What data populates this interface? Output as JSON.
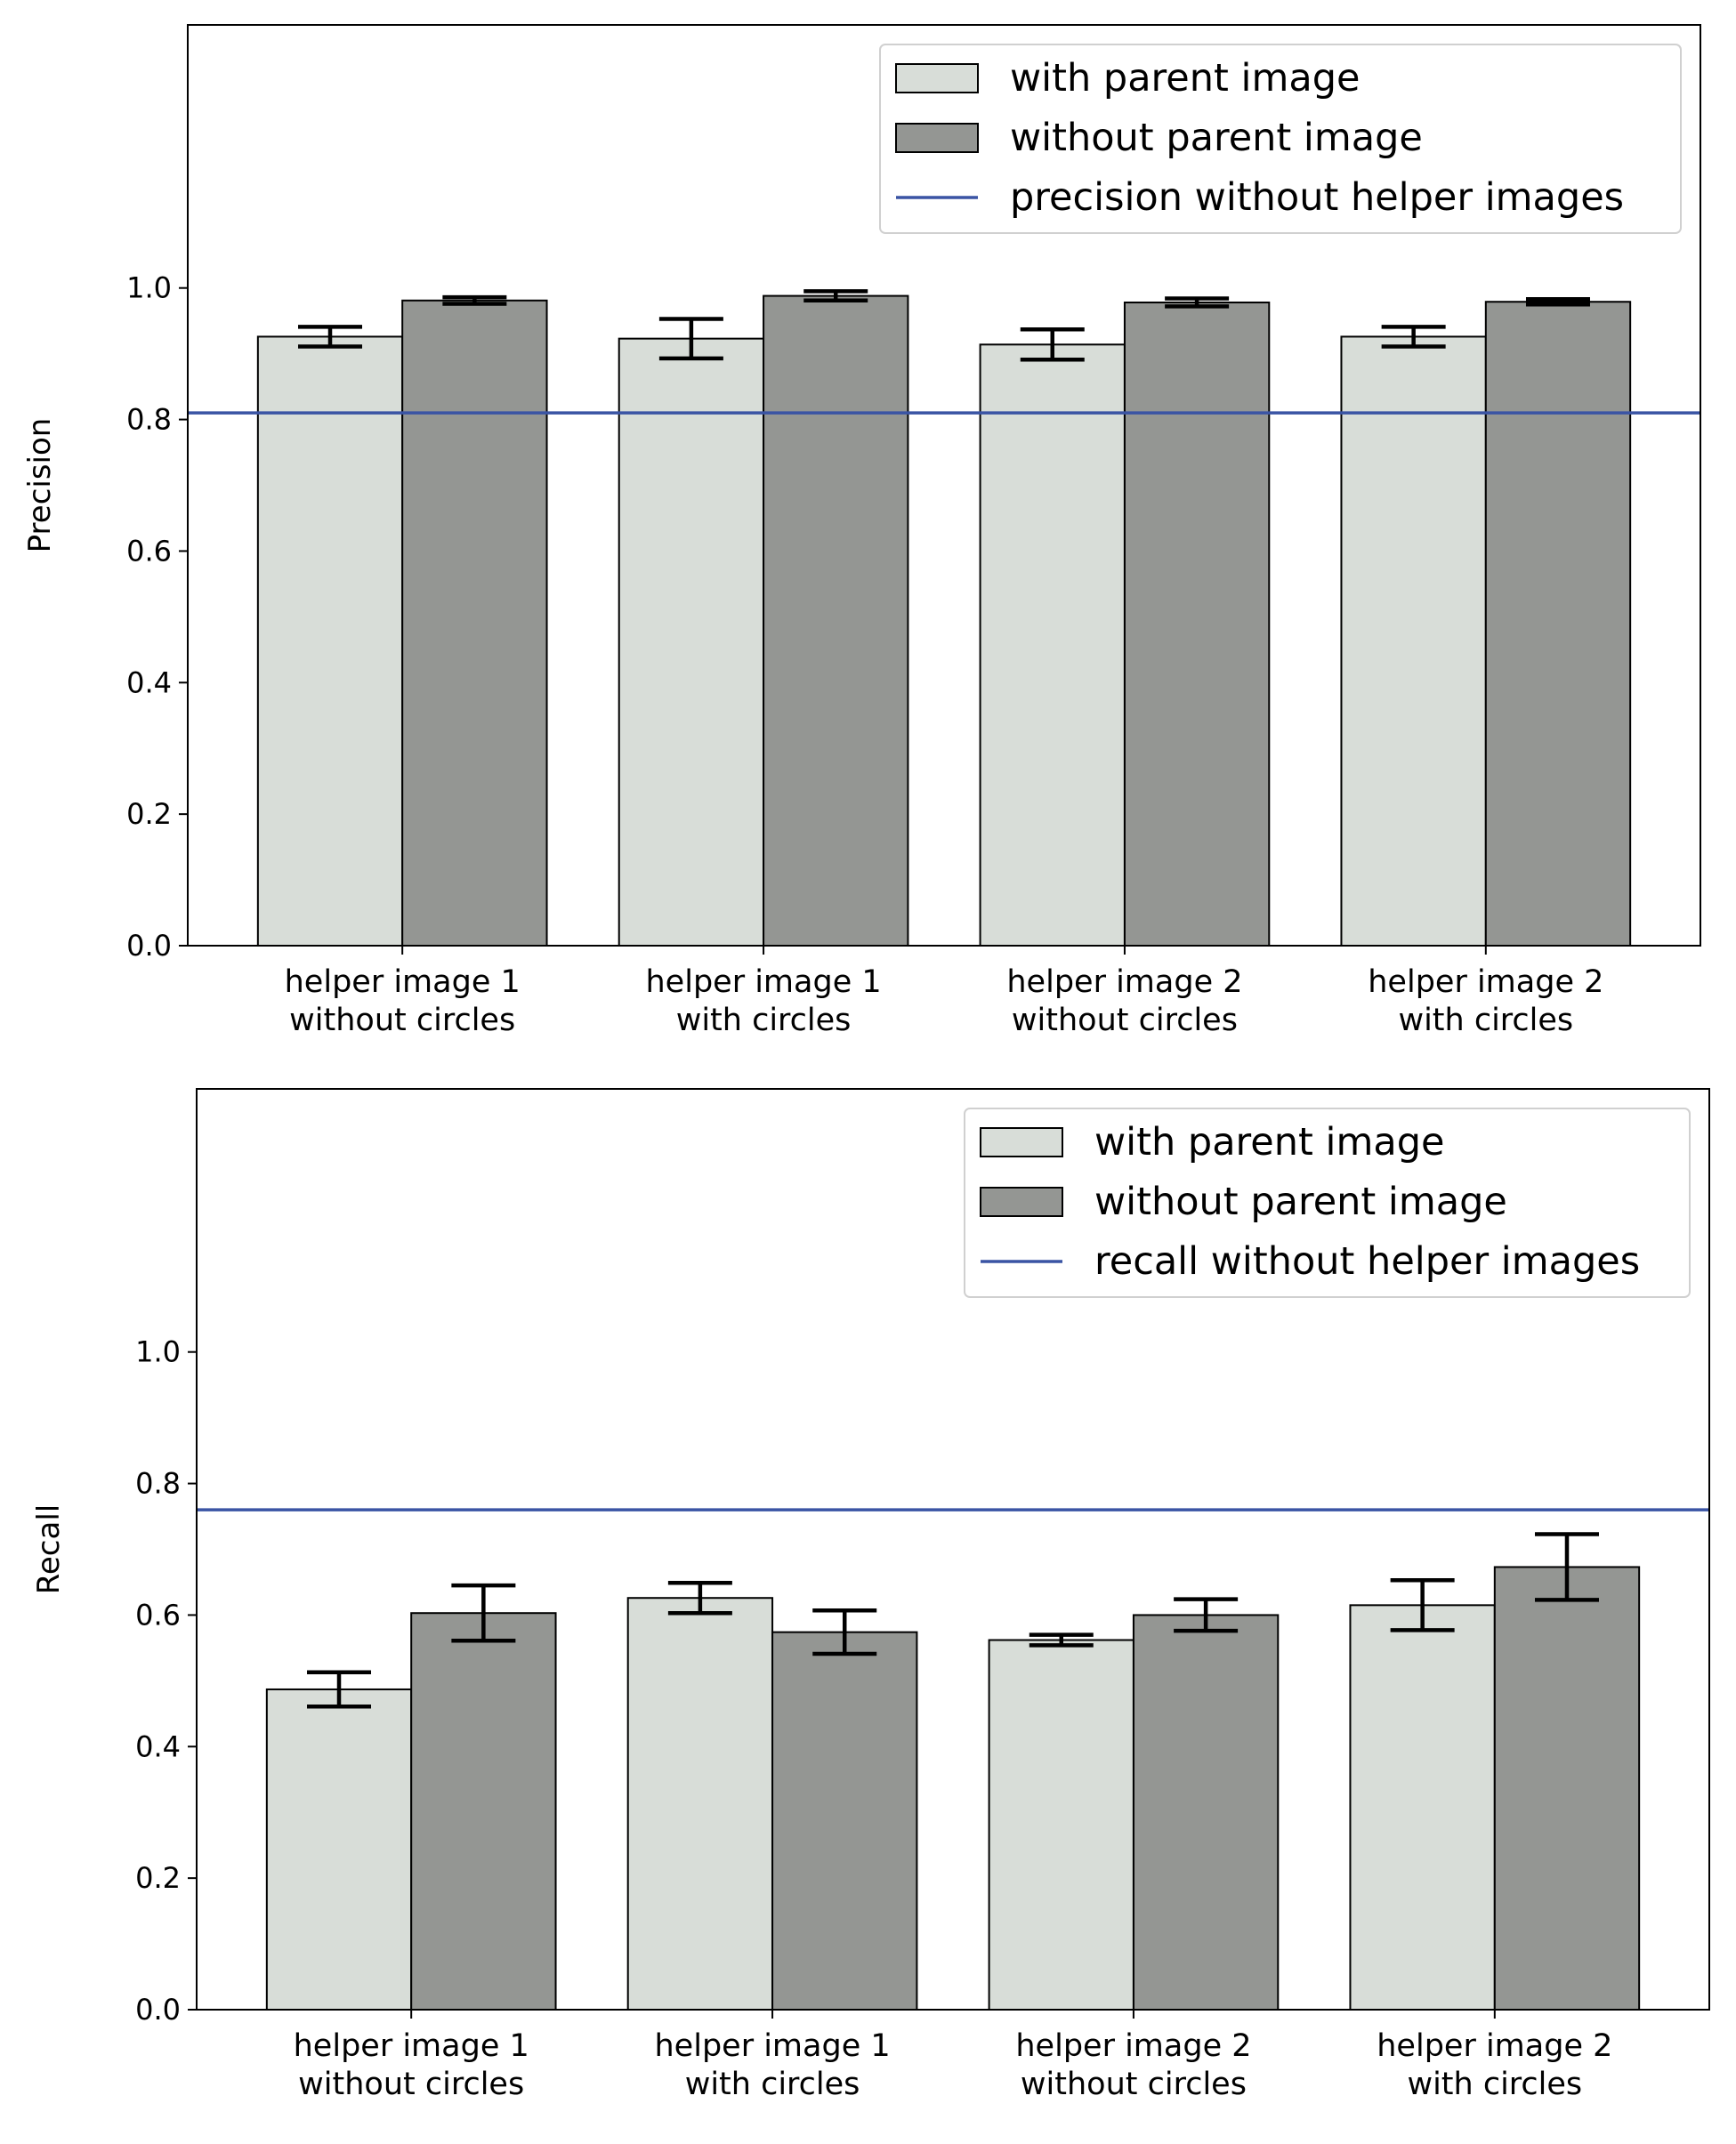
{
  "chart_data": [
    {
      "type": "bar",
      "title": "",
      "xlabel": "",
      "ylabel": "Precision",
      "ylim": [
        0,
        1.4
      ],
      "yticks": [
        "0.0",
        "0.2",
        "0.4",
        "0.6",
        "0.8",
        "1.0"
      ],
      "categories": [
        [
          "helper image 1",
          "without circles"
        ],
        [
          "helper image 1",
          "with circles"
        ],
        [
          "helper image 2",
          "without circles"
        ],
        [
          "helper image 2",
          "with circles"
        ]
      ],
      "series": [
        {
          "name": "with parent image",
          "color": "#d8ddd8",
          "values": [
            0.926,
            0.923,
            0.914,
            0.926
          ],
          "errors": [
            0.015,
            0.03,
            0.023,
            0.015
          ]
        },
        {
          "name": "without parent image",
          "color": "#949693",
          "values": [
            0.981,
            0.988,
            0.978,
            0.979
          ],
          "errors": [
            0.005,
            0.007,
            0.006,
            0.004
          ]
        }
      ],
      "reference_line": {
        "name": "precision without helper images",
        "value": 0.81,
        "color": "#3a54a4"
      },
      "legend_position": "upper-right",
      "grid": false
    },
    {
      "type": "bar",
      "title": "",
      "xlabel": "",
      "ylabel": "Recall",
      "ylim": [
        0,
        1.4
      ],
      "yticks": [
        "0.0",
        "0.2",
        "0.4",
        "0.6",
        "0.8",
        "1.0"
      ],
      "categories": [
        [
          "helper image 1",
          "without circles"
        ],
        [
          "helper image 1",
          "with circles"
        ],
        [
          "helper image 2",
          "without circles"
        ],
        [
          "helper image 2",
          "with circles"
        ]
      ],
      "series": [
        {
          "name": "with parent image",
          "color": "#d8ddd8",
          "values": [
            0.487,
            0.626,
            0.562,
            0.615
          ],
          "errors": [
            0.026,
            0.023,
            0.008,
            0.038
          ]
        },
        {
          "name": "without parent image",
          "color": "#949693",
          "values": [
            0.603,
            0.574,
            0.6,
            0.673
          ],
          "errors": [
            0.042,
            0.033,
            0.024,
            0.05
          ]
        }
      ],
      "reference_line": {
        "name": "recall without helper images",
        "value": 0.76,
        "color": "#3a54a4"
      },
      "legend_position": "upper-right",
      "grid": false
    }
  ]
}
